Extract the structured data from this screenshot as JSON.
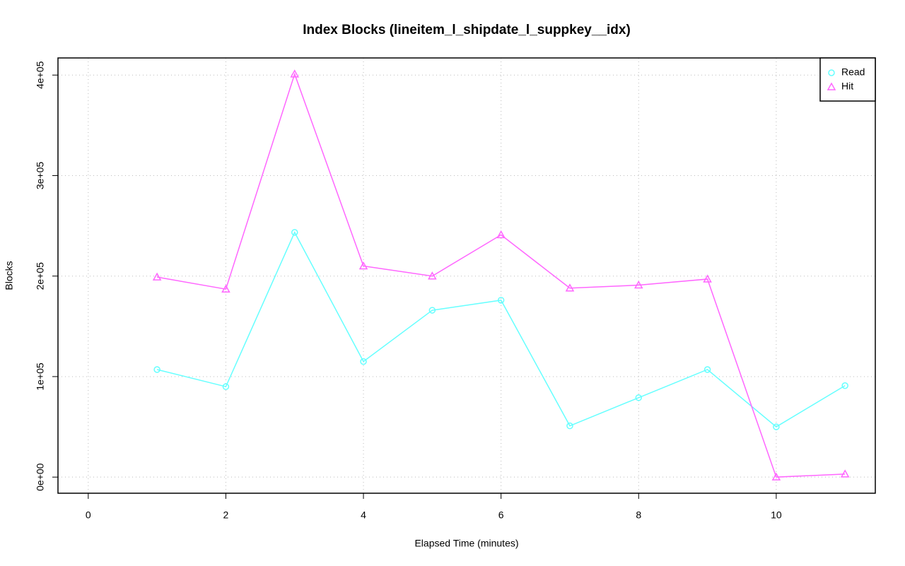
{
  "chart_data": {
    "type": "line",
    "title": "Index Blocks (lineitem_l_shipdate_l_suppkey__idx)",
    "x_label": "Elapsed Time (minutes)",
    "y_label": "Blocks",
    "x": [
      1,
      2,
      3,
      4,
      5,
      6,
      7,
      8,
      9,
      10,
      11
    ],
    "series": [
      {
        "name": "Read",
        "color": "#66ffff",
        "marker": "circle",
        "values": [
          107000,
          90000,
          243500,
          115000,
          166000,
          176000,
          51000,
          79000,
          107000,
          50000,
          91000
        ]
      },
      {
        "name": "Hit",
        "color": "#ff66ff",
        "marker": "triangle",
        "values": [
          199000,
          187000,
          401000,
          210000,
          200000,
          241000,
          188000,
          191000,
          197000,
          0,
          3000
        ]
      }
    ],
    "xlim": [
      -0.44,
      11.44
    ],
    "ylim": [
      -16040,
      417040
    ],
    "xticks": [
      0,
      2,
      4,
      6,
      8,
      10
    ],
    "yticks": [
      {
        "value": 0,
        "label": "0e+00"
      },
      {
        "value": 100000,
        "label": "1e+05"
      },
      {
        "value": 200000,
        "label": "2e+05"
      },
      {
        "value": 300000,
        "label": "3e+05"
      },
      {
        "value": 400000,
        "label": "4e+05"
      }
    ],
    "grid": true,
    "legend": "top-right"
  }
}
